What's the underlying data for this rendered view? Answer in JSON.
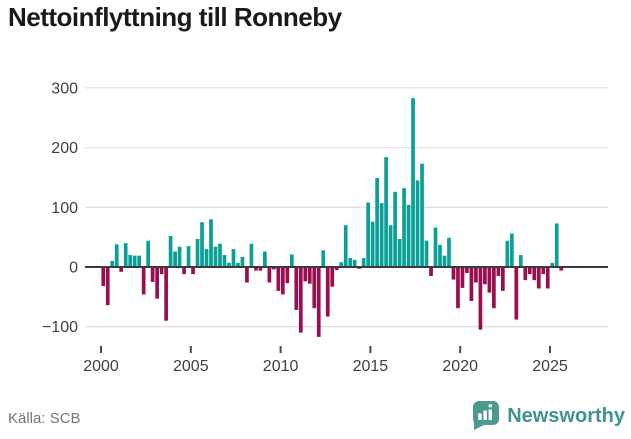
{
  "header": {
    "title": "Nettoinflyttning till Ronneby"
  },
  "chart_data": {
    "type": "bar",
    "title": "Nettoinflyttning till Ronneby",
    "frequency": "quarterly",
    "x_range_years": [
      2000,
      2025
    ],
    "xticks": [
      2000,
      2005,
      2010,
      2015,
      2020,
      2025
    ],
    "yticks": [
      300,
      200,
      100,
      0,
      -100
    ],
    "ylim": [
      -130,
      310
    ],
    "grid": "horizontal",
    "legend": "none",
    "colors": {
      "positive": "#0aa096",
      "negative": "#9c0d4e",
      "gridline": "#e2e2e2",
      "zero_line": "#3b3b3b",
      "tick_text": "#3f3f3f"
    },
    "data_by_year": {
      "2000": [
        -32,
        -64,
        10,
        38
      ],
      "2001": [
        -8,
        40,
        20,
        19
      ],
      "2002": [
        19,
        -46,
        44,
        -25
      ],
      "2003": [
        -53,
        -12,
        -90,
        52
      ],
      "2004": [
        26,
        34,
        -12,
        35
      ],
      "2005": [
        -12,
        47,
        75,
        30
      ],
      "2006": [
        80,
        34,
        39,
        20
      ],
      "2007": [
        7,
        30,
        7,
        17
      ],
      "2008": [
        -26,
        39,
        -6,
        -6
      ],
      "2009": [
        26,
        -26,
        -4,
        -40
      ],
      "2010": [
        -46,
        -27,
        21,
        -72
      ],
      "2011": [
        -110,
        -24,
        -28,
        -69
      ],
      "2012": [
        -117,
        28,
        -83,
        -33
      ],
      "2013": [
        -5,
        8,
        70,
        15
      ],
      "2014": [
        12,
        -3,
        15,
        108
      ],
      "2015": [
        76,
        149,
        107,
        184
      ],
      "2016": [
        70,
        126,
        47,
        132
      ],
      "2017": [
        104,
        283,
        145,
        173
      ],
      "2018": [
        44,
        -15,
        66,
        37
      ],
      "2019": [
        19,
        49,
        -21,
        -69
      ],
      "2020": [
        -35,
        -10,
        -57,
        -26
      ],
      "2021": [
        -105,
        -29,
        -43,
        -69
      ],
      "2022": [
        -15,
        -40,
        44,
        56
      ],
      "2023": [
        -88,
        20,
        -22,
        -12
      ],
      "2024": [
        -22,
        -36,
        -12,
        -36
      ],
      "2025": [
        7,
        73,
        -6
      ]
    }
  },
  "footer": {
    "source": "Källa: SCB",
    "brand": "Newsworthy"
  }
}
